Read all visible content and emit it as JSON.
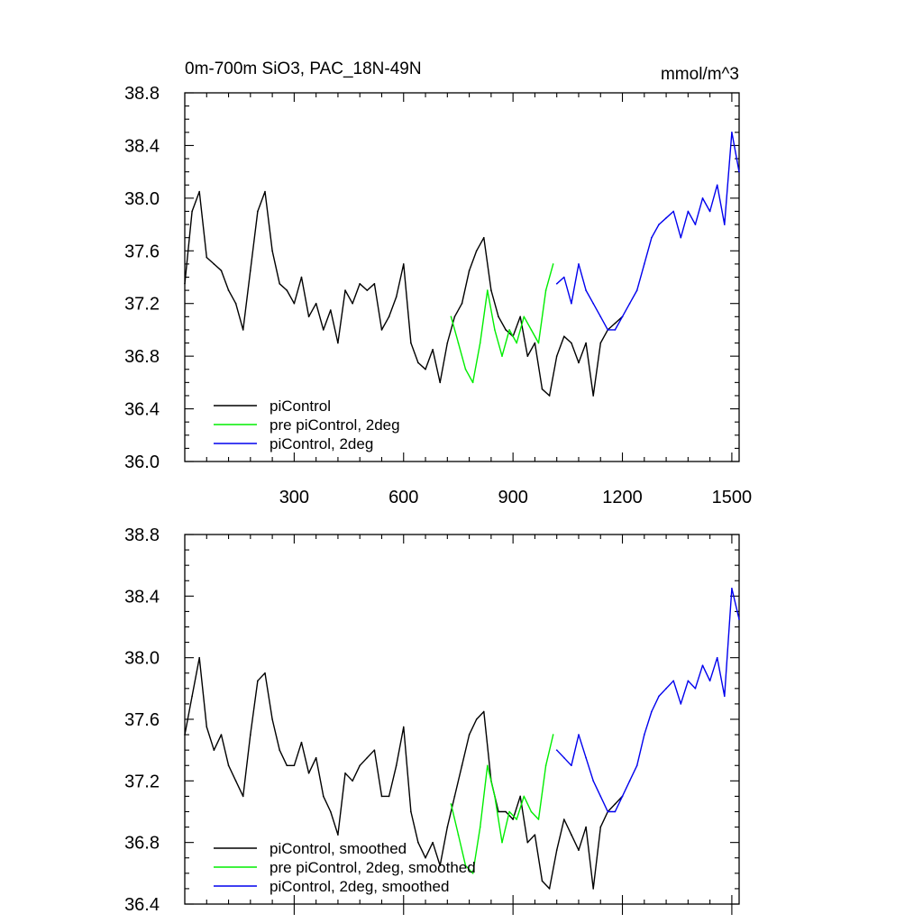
{
  "chart_data": [
    {
      "type": "line",
      "title": "0m-700m SiO3, PAC_18N-49N",
      "units": "mmol/m^3",
      "xlim": [
        0,
        1520
      ],
      "ylim": [
        36.0,
        38.8
      ],
      "x_ticks": [
        300,
        600,
        900,
        1200,
        1500
      ],
      "y_ticks": [
        36.0,
        36.4,
        36.8,
        37.2,
        37.6,
        38.0,
        38.4,
        38.8
      ],
      "y_tick_labels": [
        "36.0",
        "36.4",
        "36.8",
        "37.2",
        "37.6",
        "38.0",
        "38.4",
        "38.8"
      ],
      "x_tick_labels": [
        "300",
        "600",
        "900",
        "1200",
        "1500"
      ],
      "grid": false,
      "legend_position": "bottom-left",
      "series": [
        {
          "name": "piControl",
          "color": "#000000",
          "x": [
            0,
            20,
            40,
            60,
            80,
            100,
            120,
            140,
            160,
            180,
            200,
            220,
            240,
            260,
            280,
            300,
            320,
            340,
            360,
            380,
            400,
            420,
            440,
            460,
            480,
            500,
            520,
            540,
            560,
            580,
            600,
            620,
            640,
            660,
            680,
            700,
            720,
            740,
            760,
            780,
            800,
            820,
            840,
            860,
            880,
            900,
            920,
            940,
            960,
            980,
            1000,
            1020,
            1040,
            1060,
            1080,
            1100,
            1120,
            1140,
            1160,
            1180,
            1200
          ],
          "y": [
            37.35,
            37.9,
            38.05,
            37.55,
            37.5,
            37.45,
            37.3,
            37.2,
            37.0,
            37.45,
            37.9,
            38.05,
            37.6,
            37.35,
            37.3,
            37.2,
            37.4,
            37.1,
            37.2,
            37.0,
            37.15,
            36.9,
            37.3,
            37.2,
            37.35,
            37.3,
            37.35,
            37.0,
            37.1,
            37.25,
            37.5,
            36.9,
            36.75,
            36.7,
            36.85,
            36.6,
            36.9,
            37.1,
            37.2,
            37.45,
            37.6,
            37.7,
            37.3,
            37.1,
            37.0,
            36.95,
            37.1,
            36.8,
            36.9,
            36.55,
            36.5,
            36.8,
            36.95,
            36.9,
            36.75,
            36.9,
            36.5,
            36.9,
            37.0,
            37.05,
            37.1
          ]
        },
        {
          "name": "pre piControl, 2deg",
          "color": "#00ee00",
          "x": [
            730,
            750,
            770,
            790,
            810,
            830,
            850,
            870,
            890,
            910,
            930,
            950,
            970,
            990,
            1010
          ],
          "y": [
            37.1,
            36.9,
            36.7,
            36.6,
            36.9,
            37.3,
            37.0,
            36.8,
            37.0,
            36.9,
            37.1,
            37.0,
            36.9,
            37.3,
            37.5
          ]
        },
        {
          "name": "piControl, 2deg",
          "color": "#0000ee",
          "x": [
            1020,
            1040,
            1060,
            1080,
            1100,
            1120,
            1140,
            1160,
            1180,
            1200,
            1220,
            1240,
            1260,
            1280,
            1300,
            1320,
            1340,
            1360,
            1380,
            1400,
            1420,
            1440,
            1460,
            1480,
            1500,
            1520
          ],
          "y": [
            37.35,
            37.4,
            37.2,
            37.5,
            37.3,
            37.2,
            37.1,
            37.0,
            37.0,
            37.1,
            37.2,
            37.3,
            37.5,
            37.7,
            37.8,
            37.85,
            37.9,
            37.7,
            37.9,
            37.8,
            38.0,
            37.9,
            38.1,
            37.8,
            38.5,
            38.2
          ]
        }
      ]
    },
    {
      "type": "line",
      "xlim": [
        0,
        1520
      ],
      "ylim": [
        36.4,
        38.8
      ],
      "x_ticks": [
        300,
        600,
        900,
        1200,
        1500
      ],
      "y_ticks": [
        36.4,
        36.8,
        37.2,
        37.6,
        38.0,
        38.4,
        38.8
      ],
      "y_tick_labels": [
        "36.4",
        "36.8",
        "37.2",
        "37.6",
        "38.0",
        "38.4",
        "38.8"
      ],
      "grid": false,
      "legend_position": "bottom-left",
      "series": [
        {
          "name": "piControl, smoothed",
          "color": "#000000",
          "x": [
            0,
            20,
            40,
            60,
            80,
            100,
            120,
            140,
            160,
            180,
            200,
            220,
            240,
            260,
            280,
            300,
            320,
            340,
            360,
            380,
            400,
            420,
            440,
            460,
            480,
            500,
            520,
            540,
            560,
            580,
            600,
            620,
            640,
            660,
            680,
            700,
            720,
            740,
            760,
            780,
            800,
            820,
            840,
            860,
            880,
            900,
            920,
            940,
            960,
            980,
            1000,
            1020,
            1040,
            1060,
            1080,
            1100,
            1120,
            1140,
            1160,
            1180,
            1200
          ],
          "y": [
            37.5,
            37.75,
            38.0,
            37.55,
            37.4,
            37.5,
            37.3,
            37.2,
            37.1,
            37.5,
            37.85,
            37.9,
            37.6,
            37.4,
            37.3,
            37.3,
            37.45,
            37.25,
            37.35,
            37.1,
            37.0,
            36.85,
            37.25,
            37.2,
            37.3,
            37.35,
            37.4,
            37.1,
            37.1,
            37.3,
            37.55,
            37.0,
            36.8,
            36.7,
            36.8,
            36.65,
            36.9,
            37.1,
            37.3,
            37.5,
            37.6,
            37.65,
            37.2,
            37.0,
            37.0,
            36.95,
            37.1,
            36.8,
            36.85,
            36.55,
            36.5,
            36.75,
            36.95,
            36.85,
            36.75,
            36.9,
            36.5,
            36.9,
            37.0,
            37.05,
            37.1
          ]
        },
        {
          "name": "pre piControl, 2deg, smoothed",
          "color": "#00ee00",
          "x": [
            730,
            750,
            770,
            790,
            810,
            830,
            850,
            870,
            890,
            910,
            930,
            950,
            970,
            990,
            1010
          ],
          "y": [
            37.05,
            36.85,
            36.65,
            36.6,
            36.9,
            37.3,
            37.1,
            36.8,
            37.0,
            36.95,
            37.1,
            37.0,
            36.95,
            37.3,
            37.5
          ]
        },
        {
          "name": "piControl, 2deg, smoothed",
          "color": "#0000ee",
          "x": [
            1020,
            1040,
            1060,
            1080,
            1100,
            1120,
            1140,
            1160,
            1180,
            1200,
            1220,
            1240,
            1260,
            1280,
            1300,
            1320,
            1340,
            1360,
            1380,
            1400,
            1420,
            1440,
            1460,
            1480,
            1500,
            1520
          ],
          "y": [
            37.4,
            37.35,
            37.3,
            37.5,
            37.35,
            37.2,
            37.1,
            37.0,
            37.0,
            37.1,
            37.2,
            37.3,
            37.5,
            37.65,
            37.75,
            37.8,
            37.85,
            37.7,
            37.85,
            37.8,
            37.95,
            37.85,
            38.0,
            37.75,
            38.45,
            38.25
          ]
        }
      ]
    }
  ]
}
